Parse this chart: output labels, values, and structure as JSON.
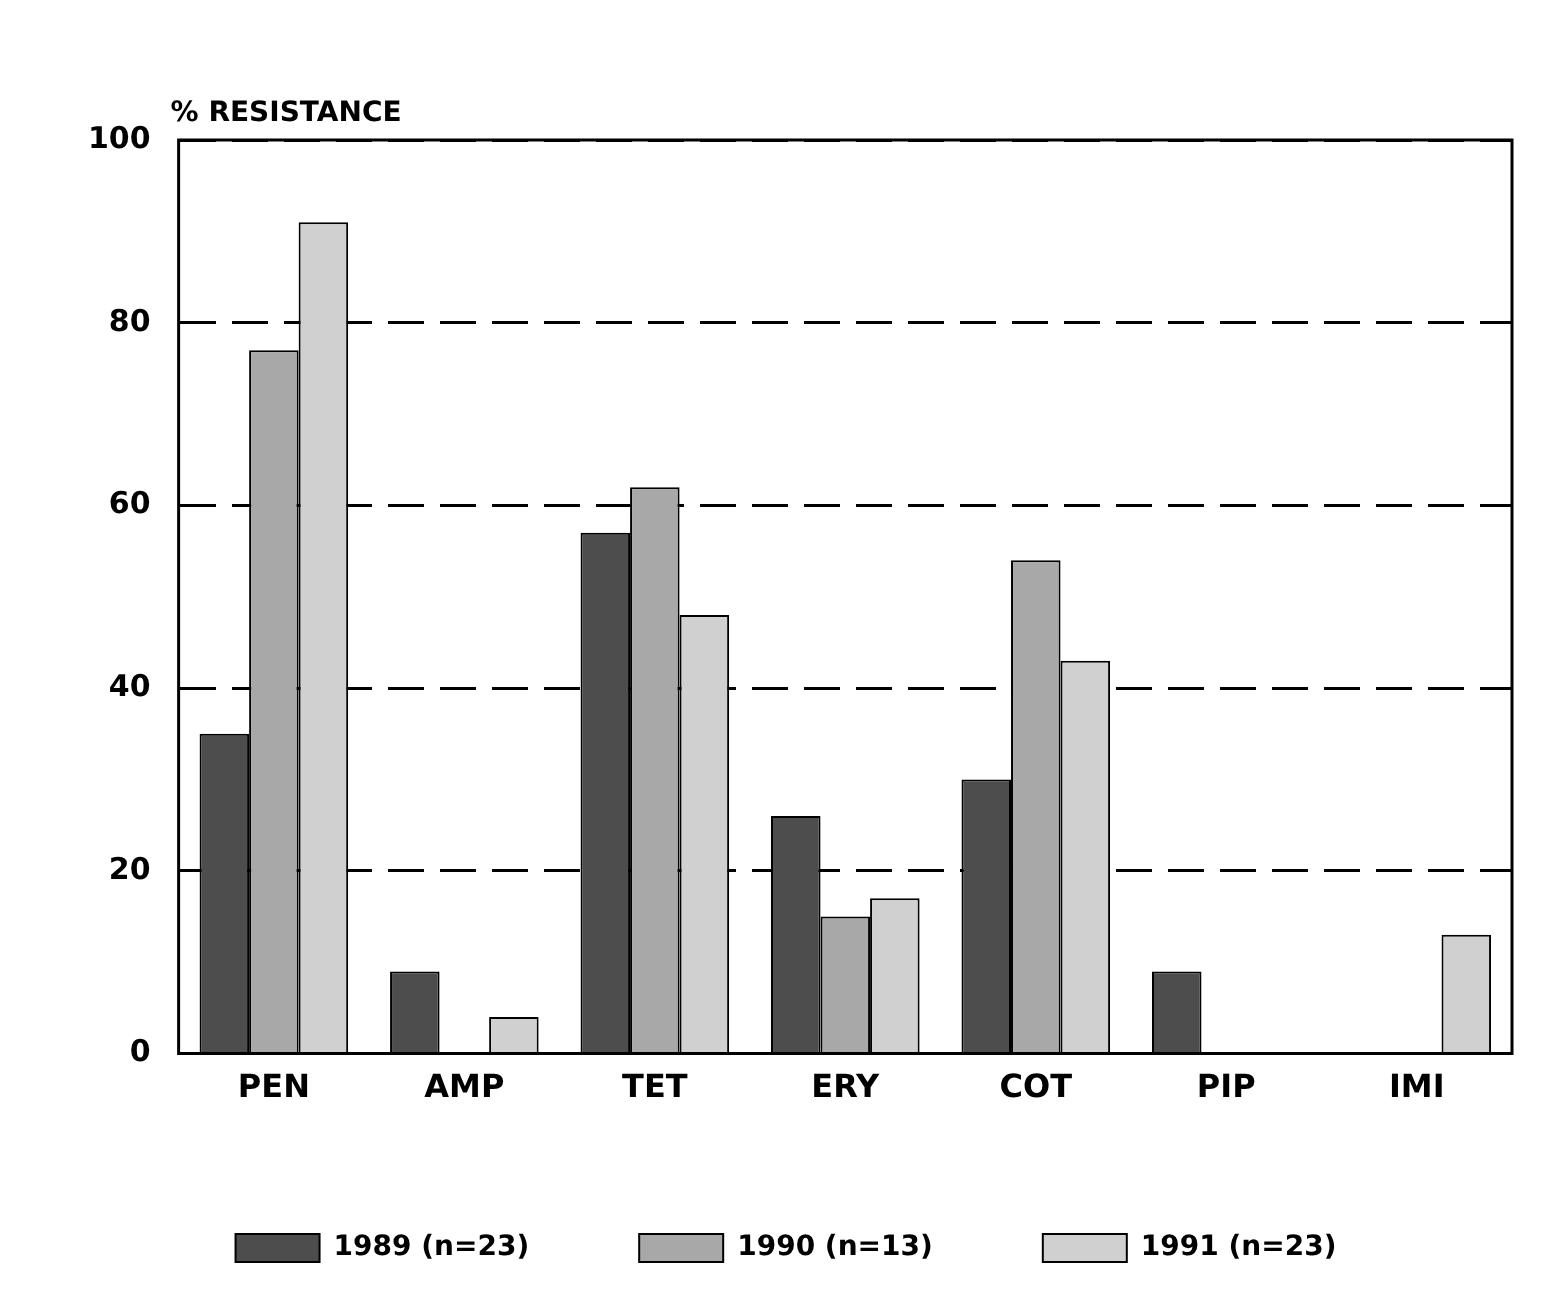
{
  "chart_data": {
    "type": "bar",
    "ylabel": "% RESISTANCE",
    "categories": [
      "PEN",
      "AMP",
      "TET",
      "ERY",
      "COT",
      "PIP",
      "IMI"
    ],
    "series": [
      {
        "name": "1989 (n=23)",
        "color": "#4d4d4d",
        "values": [
          35,
          9,
          57,
          26,
          30,
          9,
          0
        ]
      },
      {
        "name": "1990 (n=13)",
        "color": "#a8a8a8",
        "values": [
          77,
          0,
          62,
          15,
          54,
          0,
          0
        ]
      },
      {
        "name": "1991 (n=23)",
        "color": "#d0d0d0",
        "values": [
          91,
          4,
          48,
          17,
          43,
          0,
          13
        ]
      }
    ],
    "ylim": [
      0,
      100
    ],
    "yticks": [
      0,
      20,
      40,
      60,
      80,
      100
    ],
    "grid": "y",
    "legend": "bottom"
  }
}
